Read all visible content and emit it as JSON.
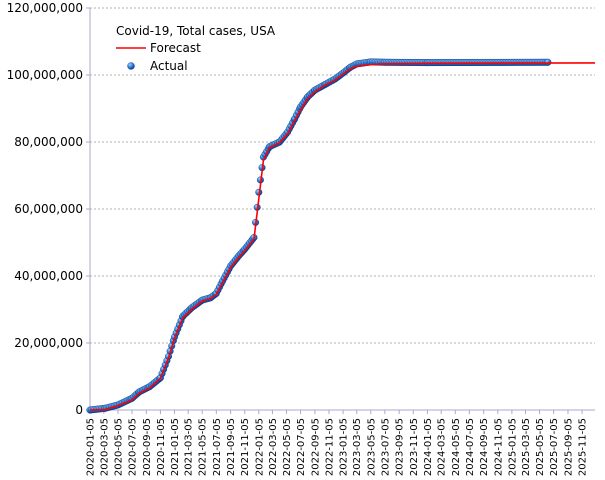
{
  "chart_data": {
    "type": "line",
    "title": "Covid-19, Total cases, USA",
    "legend": {
      "placement": "top-left",
      "entries": [
        {
          "label": "Forecast",
          "kind": "line",
          "color": "#ff0000"
        },
        {
          "label": "Actual",
          "kind": "marker",
          "color": "#1f5fbf"
        }
      ]
    },
    "y_axis": {
      "min": 0,
      "max": 120000000,
      "ticks": [
        {
          "value": 0,
          "label": "0"
        },
        {
          "value": 20000000,
          "label": "20,000,000"
        },
        {
          "value": 40000000,
          "label": "40,000,000"
        },
        {
          "value": 60000000,
          "label": "60,000,000"
        },
        {
          "value": 80000000,
          "label": "80,000,000"
        },
        {
          "value": 100000000,
          "label": "100,000,000"
        },
        {
          "value": 120000000,
          "label": "120,000,000"
        }
      ],
      "grid": true
    },
    "x_axis": {
      "start": "2020-01-05",
      "end": "2025-12-31",
      "tick_labels": [
        "2020-01-05",
        "2020-03-05",
        "2020-05-05",
        "2020-07-05",
        "2020-09-05",
        "2020-11-05",
        "2021-01-05",
        "2021-03-05",
        "2021-05-05",
        "2021-07-05",
        "2021-09-05",
        "2021-11-05",
        "2022-01-05",
        "2022-03-05",
        "2022-05-05",
        "2022-07-05",
        "2022-09-05",
        "2022-11-05",
        "2023-01-05",
        "2023-03-05",
        "2023-05-05",
        "2023-07-05",
        "2023-09-05",
        "2023-11-05",
        "2024-01-05",
        "2024-03-05",
        "2024-05-05",
        "2024-07-05",
        "2024-09-05",
        "2024-11-05",
        "2025-01-05",
        "2025-03-05",
        "2025-05-05",
        "2025-07-05",
        "2025-09-05",
        "2025-11-05"
      ],
      "grid": false
    },
    "series": [
      {
        "name": "Forecast",
        "style": "line",
        "color": "#ff0000",
        "points": [
          [
            "2020-01-05",
            0
          ],
          [
            "2020-03-10",
            100000
          ],
          [
            "2020-05-05",
            1300000
          ],
          [
            "2020-07-05",
            3000000
          ],
          [
            "2020-08-05",
            5000000
          ],
          [
            "2020-09-20",
            6600000
          ],
          [
            "2020-11-05",
            9500000
          ],
          [
            "2020-12-10",
            15500000
          ],
          [
            "2021-01-05",
            21500000
          ],
          [
            "2021-02-10",
            27500000
          ],
          [
            "2021-03-20",
            30000000
          ],
          [
            "2021-05-05",
            32500000
          ],
          [
            "2021-06-10",
            33300000
          ],
          [
            "2021-07-05",
            34500000
          ],
          [
            "2021-08-01",
            38000000
          ],
          [
            "2021-09-05",
            42500000
          ],
          [
            "2021-10-10",
            45500000
          ],
          [
            "2021-11-05",
            47500000
          ],
          [
            "2021-12-15",
            51000000
          ],
          [
            "2022-01-05",
            63000000
          ],
          [
            "2022-01-25",
            74500000
          ],
          [
            "2022-02-20",
            78300000
          ],
          [
            "2022-04-05",
            79800000
          ],
          [
            "2022-05-10",
            82500000
          ],
          [
            "2022-06-10",
            86500000
          ],
          [
            "2022-07-05",
            89500000
          ],
          [
            "2022-08-05",
            93000000
          ],
          [
            "2022-09-05",
            95000000
          ],
          [
            "2022-10-20",
            97000000
          ],
          [
            "2022-12-01",
            98500000
          ],
          [
            "2023-01-05",
            100300000
          ],
          [
            "2023-02-05",
            101800000
          ],
          [
            "2023-03-05",
            102600000
          ],
          [
            "2023-05-05",
            103100000
          ],
          [
            "2023-07-05",
            103300000
          ],
          [
            "2024-01-05",
            103500000
          ],
          [
            "2025-12-31",
            103600000
          ]
        ]
      },
      {
        "name": "Actual",
        "style": "markers",
        "color": "#1f5fbf",
        "points": [
          [
            "2020-01-05",
            0
          ],
          [
            "2020-03-10",
            500000
          ],
          [
            "2020-05-05",
            1500000
          ],
          [
            "2020-07-05",
            3500000
          ],
          [
            "2020-08-05",
            5400000
          ],
          [
            "2020-09-20",
            7000000
          ],
          [
            "2020-11-05",
            9600000
          ],
          [
            "2020-12-10",
            16000000
          ],
          [
            "2021-01-05",
            21800000
          ],
          [
            "2021-02-10",
            28000000
          ],
          [
            "2021-03-20",
            30500000
          ],
          [
            "2021-05-05",
            32800000
          ],
          [
            "2021-06-10",
            33500000
          ],
          [
            "2021-07-05",
            34800000
          ],
          [
            "2021-08-01",
            38500000
          ],
          [
            "2021-09-05",
            43000000
          ],
          [
            "2021-10-10",
            46000000
          ],
          [
            "2021-11-05",
            48000000
          ],
          [
            "2021-12-15",
            51500000
          ],
          [
            "2022-01-05",
            65000000
          ],
          [
            "2022-01-25",
            75500000
          ],
          [
            "2022-02-20",
            78600000
          ],
          [
            "2022-04-05",
            80000000
          ],
          [
            "2022-05-10",
            83000000
          ],
          [
            "2022-06-10",
            87000000
          ],
          [
            "2022-07-05",
            90500000
          ],
          [
            "2022-08-05",
            93500000
          ],
          [
            "2022-09-05",
            95500000
          ],
          [
            "2022-10-20",
            97200000
          ],
          [
            "2022-12-01",
            98800000
          ],
          [
            "2023-01-05",
            100600000
          ],
          [
            "2023-02-05",
            102300000
          ],
          [
            "2023-03-05",
            103300000
          ],
          [
            "2023-05-05",
            103900000
          ],
          [
            "2023-07-05",
            103800000
          ],
          [
            "2024-01-05",
            103700000
          ],
          [
            "2025-06-10",
            103800000
          ]
        ]
      }
    ]
  }
}
